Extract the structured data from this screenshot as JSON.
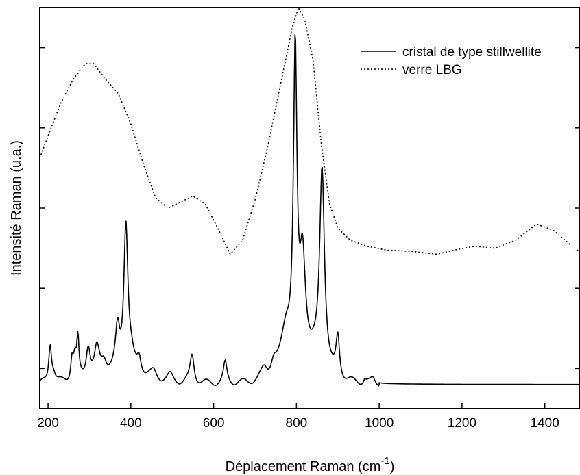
{
  "chart_data": {
    "type": "line",
    "xlabel": "Déplacement Raman (cm",
    "xlabel_superscript": "-1",
    "xlabel_suffix": ")",
    "ylabel": "Intensité Raman (u.a.)",
    "xlim": [
      180,
      1485
    ],
    "ylim": [
      0,
      10
    ],
    "x_ticks": [
      200,
      400,
      600,
      800,
      1000,
      1200,
      1400
    ],
    "y_ticks": [
      1,
      3,
      5,
      7,
      9
    ],
    "y_tick_labels_shown": false,
    "grid": false,
    "legend_position": "top-right",
    "series": [
      {
        "name": "cristal de type stillwellite",
        "style": "solid",
        "color": "#000000",
        "peaks": [
          {
            "x": 205,
            "h": 0.95,
            "w": 4
          },
          {
            "x": 213,
            "h": 0.25,
            "w": 6
          },
          {
            "x": 258,
            "h": 0.6,
            "w": 4
          },
          {
            "x": 265,
            "h": 0.5,
            "w": 4
          },
          {
            "x": 272,
            "h": 0.95,
            "w": 3
          },
          {
            "x": 297,
            "h": 0.8,
            "w": 6
          },
          {
            "x": 318,
            "h": 0.65,
            "w": 7
          },
          {
            "x": 335,
            "h": 0.35,
            "w": 8
          },
          {
            "x": 368,
            "h": 1.0,
            "w": 6
          },
          {
            "x": 388,
            "h": 3.7,
            "w": 6
          },
          {
            "x": 400,
            "h": 0.3,
            "w": 8
          },
          {
            "x": 420,
            "h": 0.4,
            "w": 6
          },
          {
            "x": 455,
            "h": 0.15,
            "w": 8
          },
          {
            "x": 495,
            "h": 0.15,
            "w": 8
          },
          {
            "x": 548,
            "h": 0.7,
            "w": 6
          },
          {
            "x": 628,
            "h": 0.5,
            "w": 5
          },
          {
            "x": 722,
            "h": 0.25,
            "w": 10
          },
          {
            "x": 745,
            "h": 0.35,
            "w": 8
          },
          {
            "x": 775,
            "h": 1.0,
            "w": 14
          },
          {
            "x": 797,
            "h": 7.5,
            "w": 5
          },
          {
            "x": 815,
            "h": 2.4,
            "w": 8
          },
          {
            "x": 862,
            "h": 5.0,
            "w": 7
          },
          {
            "x": 900,
            "h": 1.0,
            "w": 5
          },
          {
            "x": 965,
            "h": 0.12,
            "w": 4
          },
          {
            "x": 985,
            "h": 0.1,
            "w": 6
          }
        ],
        "baseline": 0.6
      },
      {
        "name": "verre LBG",
        "style": "dotted",
        "color": "#000000",
        "x": [
          180,
          200,
          230,
          260,
          290,
          310,
          340,
          370,
          400,
          430,
          460,
          490,
          520,
          550,
          580,
          610,
          640,
          670,
          700,
          730,
          760,
          790,
          805,
          820,
          840,
          860,
          880,
          900,
          930,
          970,
          1020,
          1080,
          1140,
          1180,
          1230,
          1280,
          1330,
          1380,
          1420,
          1460,
          1485
        ],
        "y": [
          6.25,
          6.8,
          7.6,
          8.2,
          8.6,
          8.6,
          8.2,
          7.85,
          7.1,
          6.1,
          5.25,
          5.0,
          5.15,
          5.3,
          5.1,
          4.5,
          3.85,
          4.2,
          5.2,
          6.5,
          8.0,
          9.5,
          10.0,
          9.7,
          8.7,
          6.6,
          5.1,
          4.5,
          4.2,
          4.05,
          3.95,
          3.92,
          3.85,
          3.95,
          4.05,
          4.0,
          4.2,
          4.6,
          4.45,
          4.1,
          3.9
        ]
      }
    ]
  }
}
